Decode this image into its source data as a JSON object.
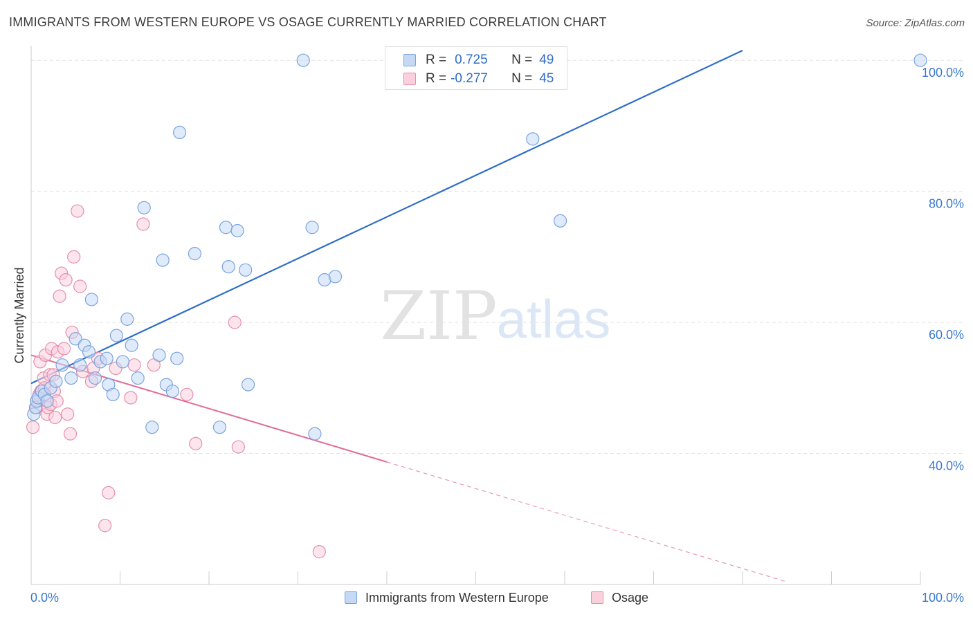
{
  "title": "IMMIGRANTS FROM WESTERN EUROPE VS OSAGE CURRENTLY MARRIED CORRELATION CHART",
  "source": "Source: ZipAtlas.com",
  "legend": {
    "series1": {
      "r_label": "R =",
      "r_value": "0.725",
      "n_label": "N =",
      "n_value": "49"
    },
    "series2": {
      "r_label": "R =",
      "r_value": "-0.277",
      "n_label": "N =",
      "n_value": "45"
    }
  },
  "watermark": {
    "zip": "ZIP",
    "atlas": "atlas"
  },
  "colors": {
    "blue": "#2f6dc9",
    "blue_fill": "#c5d9f5",
    "pink": "#e06b96",
    "pink_fill": "#fad0dc",
    "tick_label": "#3a78cf"
  },
  "chart_data": {
    "type": "scatter",
    "title": "IMMIGRANTS FROM WESTERN EUROPE VS OSAGE CURRENTLY MARRIED CORRELATION CHART",
    "xlabel": "",
    "ylabel": "Currently Married",
    "xlim": [
      0,
      100
    ],
    "ylim": [
      20,
      101.5
    ],
    "x_tick_labels": [
      {
        "value": 0,
        "label": "0.0%"
      },
      {
        "value": 100,
        "label": "100.0%"
      }
    ],
    "y_tick_labels": [
      {
        "value": 40,
        "label": "40.0%"
      },
      {
        "value": 60,
        "label": "60.0%"
      },
      {
        "value": 80,
        "label": "80.0%"
      },
      {
        "value": 100,
        "label": "100.0%"
      }
    ],
    "grid": true,
    "series": [
      {
        "name": "Immigrants from Western Europe",
        "color": "#7aa3dc",
        "fill": "#c5d9f5",
        "r": 0.725,
        "n": 49,
        "trend": {
          "x": [
            0,
            80
          ],
          "y": [
            50.7,
            101.5
          ],
          "extended": false
        },
        "points": [
          [
            0.3,
            46
          ],
          [
            0.5,
            47
          ],
          [
            0.6,
            48
          ],
          [
            0.8,
            48.5
          ],
          [
            1.2,
            49.5
          ],
          [
            1.5,
            49
          ],
          [
            1.8,
            48
          ],
          [
            2.2,
            50
          ],
          [
            2.8,
            51
          ],
          [
            3.5,
            53.5
          ],
          [
            4.5,
            51.5
          ],
          [
            5,
            57.5
          ],
          [
            5.5,
            53.5
          ],
          [
            6,
            56.5
          ],
          [
            6.5,
            55.5
          ],
          [
            6.8,
            63.5
          ],
          [
            7.2,
            51.5
          ],
          [
            7.8,
            54
          ],
          [
            8.5,
            54.5
          ],
          [
            8.7,
            50.5
          ],
          [
            9.2,
            49
          ],
          [
            9.6,
            58
          ],
          [
            10.3,
            54
          ],
          [
            10.8,
            60.5
          ],
          [
            11.3,
            56.5
          ],
          [
            12,
            51.5
          ],
          [
            12.7,
            77.5
          ],
          [
            13.6,
            44
          ],
          [
            14.4,
            55
          ],
          [
            14.8,
            69.5
          ],
          [
            15.2,
            50.5
          ],
          [
            15.9,
            49.5
          ],
          [
            16.4,
            54.5
          ],
          [
            16.7,
            89
          ],
          [
            18.4,
            70.5
          ],
          [
            21.2,
            44
          ],
          [
            21.9,
            74.5
          ],
          [
            22.2,
            68.5
          ],
          [
            23.2,
            74
          ],
          [
            24.1,
            68
          ],
          [
            24.4,
            50.5
          ],
          [
            30.6,
            100
          ],
          [
            31.6,
            74.5
          ],
          [
            31.9,
            43
          ],
          [
            33,
            66.5
          ],
          [
            34.2,
            67
          ],
          [
            56.4,
            88
          ],
          [
            59.5,
            75.5
          ],
          [
            100,
            100
          ]
        ]
      },
      {
        "name": "Osage",
        "color": "#e88eab",
        "fill": "#fad0dc",
        "r": -0.277,
        "n": 45,
        "trend": {
          "x": [
            0,
            40
          ],
          "y": [
            55,
            38.7
          ],
          "dashed_to": [
            85,
            20.4
          ]
        },
        "points": [
          [
            0.2,
            44
          ],
          [
            0.6,
            47
          ],
          [
            0.8,
            48
          ],
          [
            0.9,
            49
          ],
          [
            1.0,
            54
          ],
          [
            1.1,
            49.5
          ],
          [
            1.4,
            51.5
          ],
          [
            1.5,
            50
          ],
          [
            1.6,
            55
          ],
          [
            1.8,
            46
          ],
          [
            1.9,
            47
          ],
          [
            2.1,
            52
          ],
          [
            2.2,
            47.5
          ],
          [
            2.3,
            56
          ],
          [
            2.5,
            52
          ],
          [
            2.6,
            49.5
          ],
          [
            2.7,
            45.5
          ],
          [
            2.9,
            48
          ],
          [
            3.0,
            55.5
          ],
          [
            3.2,
            64
          ],
          [
            3.4,
            67.5
          ],
          [
            3.7,
            56
          ],
          [
            3.9,
            66.5
          ],
          [
            4.1,
            46
          ],
          [
            4.4,
            43
          ],
          [
            4.6,
            58.5
          ],
          [
            4.8,
            70
          ],
          [
            5.2,
            77
          ],
          [
            5.5,
            65.5
          ],
          [
            5.8,
            52.5
          ],
          [
            6.8,
            51
          ],
          [
            7.0,
            53
          ],
          [
            7.5,
            54.5
          ],
          [
            8.3,
            29
          ],
          [
            8.7,
            34
          ],
          [
            9.5,
            53
          ],
          [
            11.2,
            48.5
          ],
          [
            11.6,
            53.5
          ],
          [
            12.6,
            75
          ],
          [
            13.8,
            53.5
          ],
          [
            17.5,
            49
          ],
          [
            18.5,
            41.5
          ],
          [
            22.9,
            60
          ],
          [
            23.3,
            41
          ],
          [
            32.4,
            25
          ]
        ]
      }
    ]
  },
  "bottom_legend": {
    "series1_label": "Immigrants from Western Europe",
    "series2_label": "Osage"
  }
}
